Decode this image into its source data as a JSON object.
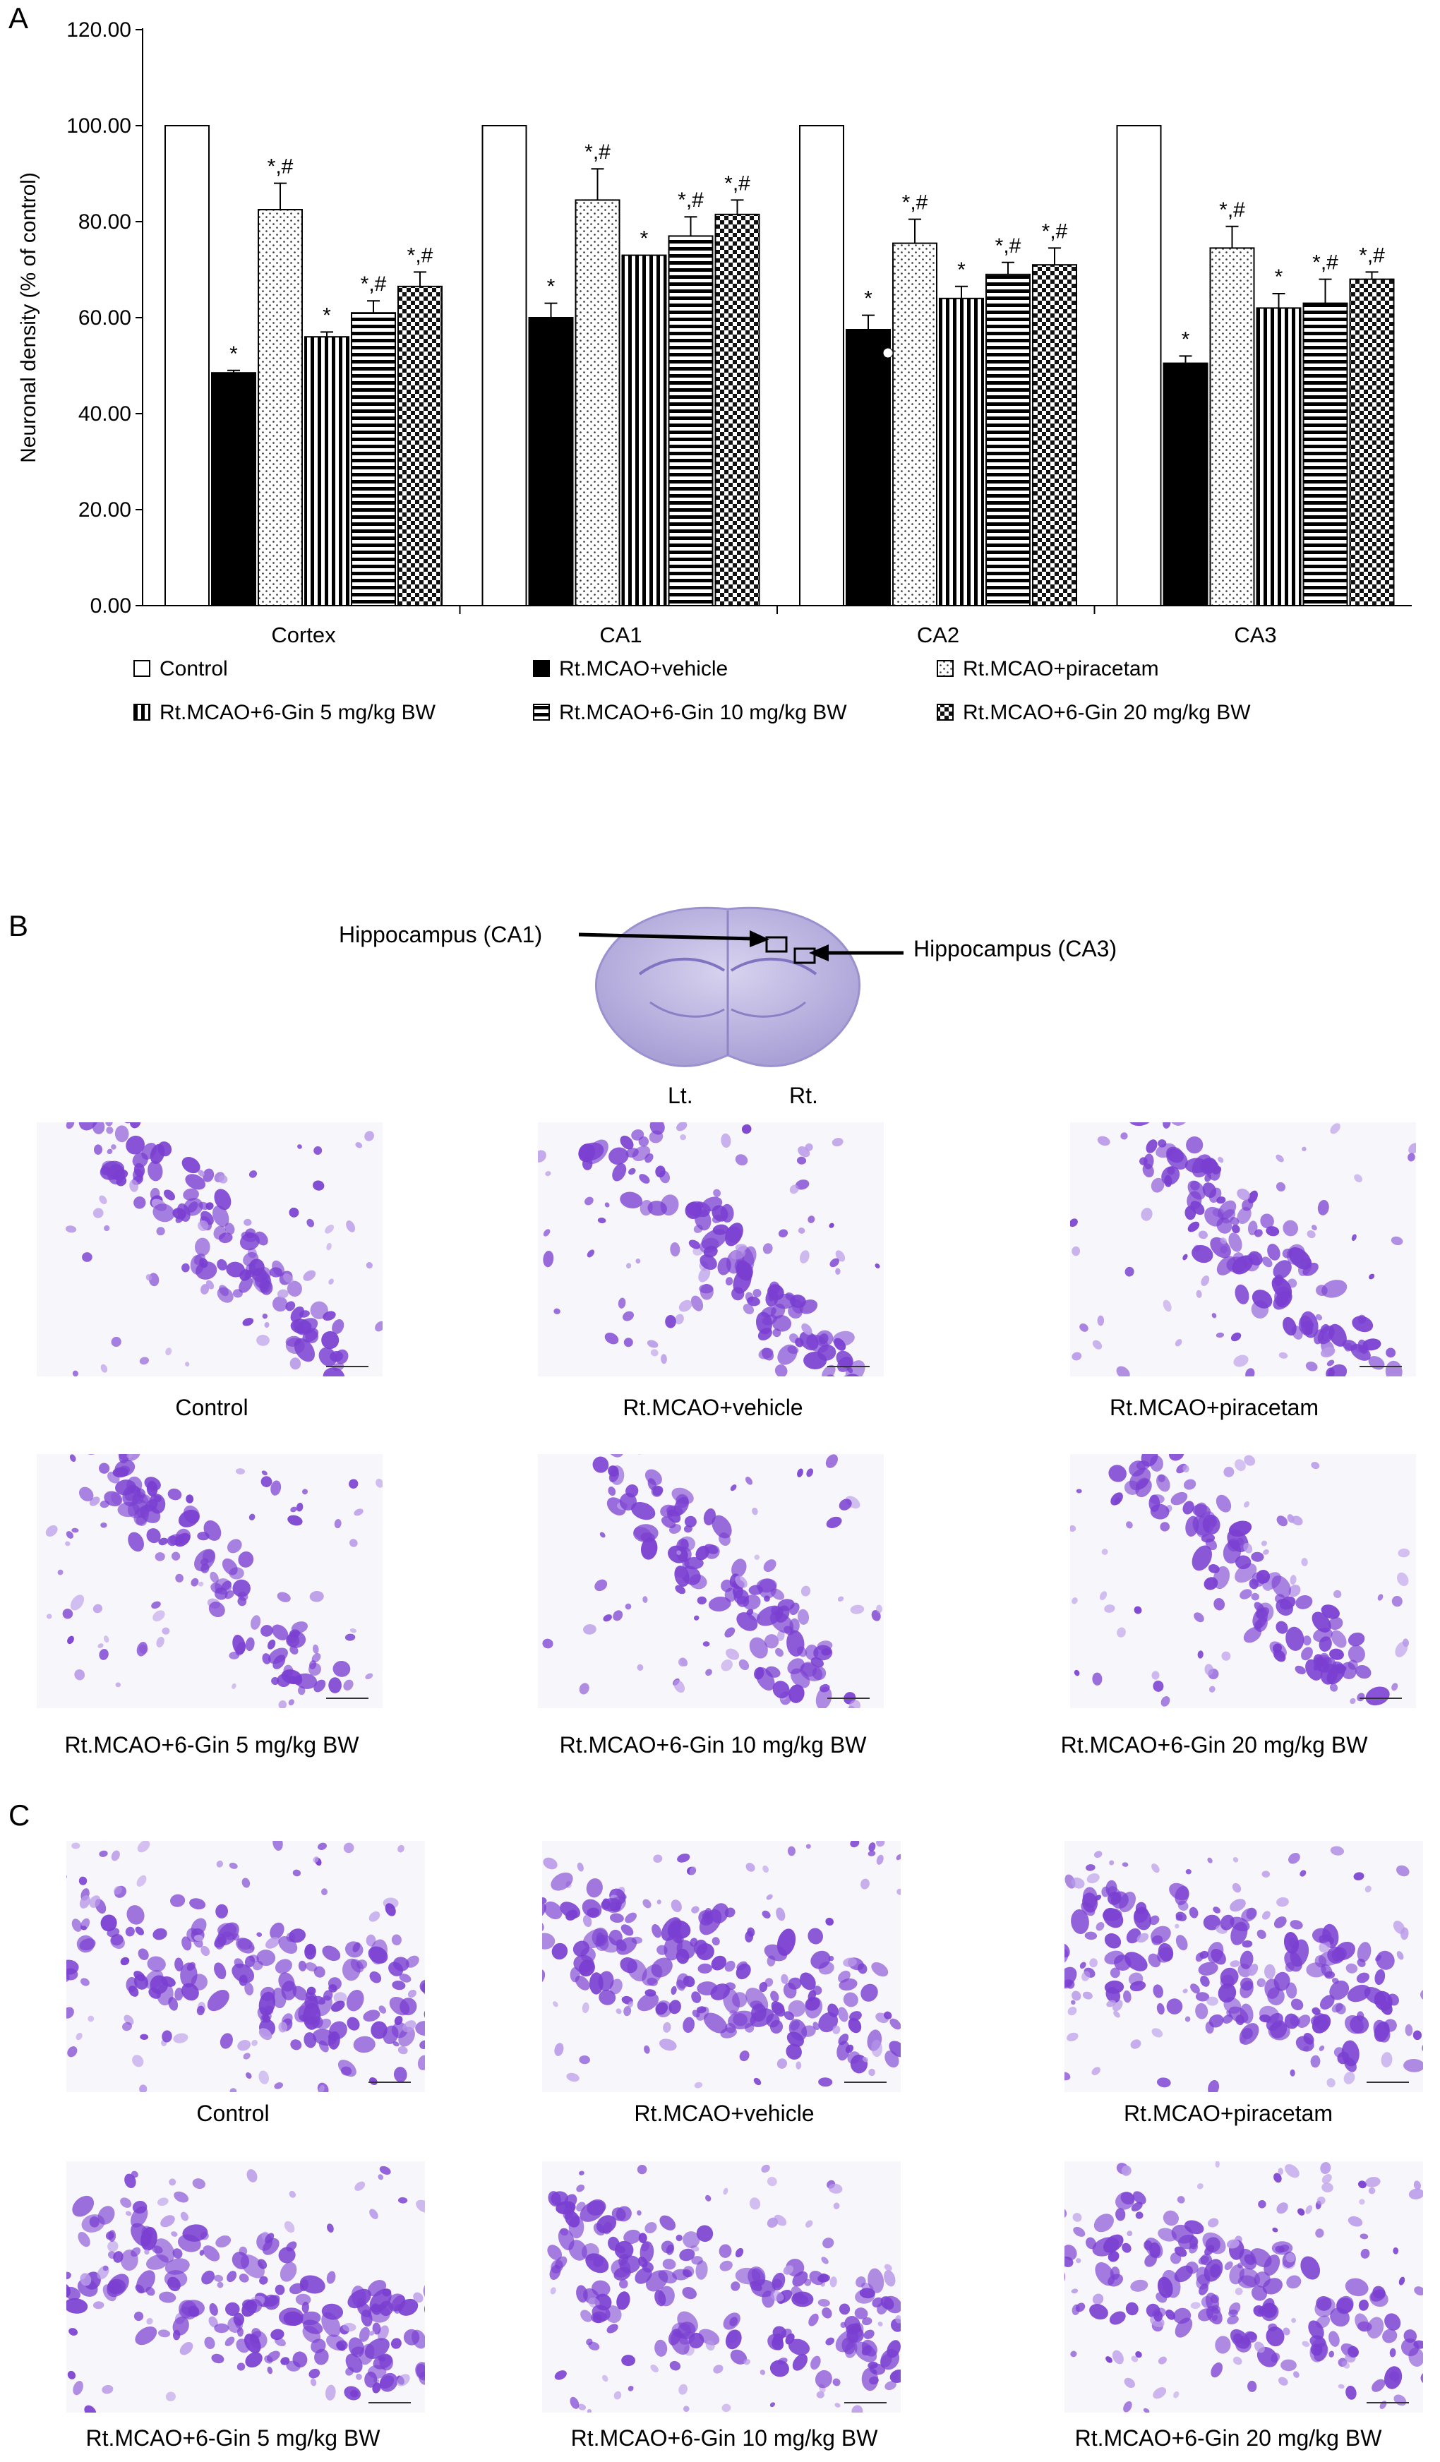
{
  "panels": {
    "a": "A",
    "b": "B",
    "c": "C"
  },
  "chart_data": {
    "type": "bar",
    "ylabel": "Neuronal density (% of control)",
    "xlabel": "",
    "ylim": [
      0,
      120
    ],
    "yticks": [
      "0.00",
      "20.00",
      "40.00",
      "60.00",
      "80.00",
      "100.00",
      "120.00"
    ],
    "categories": [
      "Cortex",
      "CA1",
      "CA2",
      "CA3"
    ],
    "series": [
      {
        "name": "Control",
        "pattern": "white",
        "values": [
          100,
          100,
          100,
          100
        ],
        "errors": [
          0,
          0,
          0,
          0
        ],
        "marks": [
          "",
          "",
          "",
          ""
        ]
      },
      {
        "name": "Rt.MCAO+vehicle",
        "pattern": "black",
        "values": [
          48.5,
          60,
          57.5,
          50.5
        ],
        "errors": [
          0.5,
          3,
          3,
          1.5
        ],
        "marks": [
          "*",
          "*",
          "*",
          "*"
        ]
      },
      {
        "name": "Rt.MCAO+piracetam",
        "pattern": "dots",
        "values": [
          82.5,
          84.5,
          75.5,
          74.5
        ],
        "errors": [
          5.5,
          6.5,
          5,
          4.5
        ],
        "marks": [
          "*,#",
          "*,#",
          "*,#",
          "*,#"
        ]
      },
      {
        "name": "Rt.MCAO+6-Gin 5 mg/kg BW",
        "pattern": "vlines",
        "values": [
          56,
          73,
          64,
          62
        ],
        "errors": [
          1,
          0,
          2.5,
          3
        ],
        "marks": [
          "*",
          "*",
          "*",
          "*"
        ]
      },
      {
        "name": "Rt.MCAO+6-Gin 10 mg/kg BW",
        "pattern": "hlines",
        "values": [
          61,
          77,
          69,
          63
        ],
        "errors": [
          2.5,
          4,
          2.5,
          5
        ],
        "marks": [
          "*,#",
          "*,#",
          "*,#",
          "*,#"
        ]
      },
      {
        "name": "Rt.MCAO+6-Gin 20 mg/kg BW",
        "pattern": "checker",
        "values": [
          66.5,
          81.5,
          71,
          68
        ],
        "errors": [
          3,
          3,
          3.5,
          1.5
        ],
        "marks": [
          "*,#",
          "*,#",
          "*,#",
          "*,#"
        ]
      }
    ],
    "grid": false,
    "legend_position": "bottom"
  },
  "panel_b": {
    "label_ca1": "Hippocampus (CA1)",
    "label_ca3": "Hippocampus (CA3)",
    "label_lt": "Lt.",
    "label_rt": "Rt.",
    "captions": [
      "Control",
      "Rt.MCAO+vehicle",
      "Rt.MCAO+piracetam",
      "Rt.MCAO+6-Gin 5 mg/kg BW",
      "Rt.MCAO+6-Gin 10 mg/kg BW",
      "Rt.MCAO+6-Gin 20 mg/kg BW"
    ]
  },
  "panel_c": {
    "captions": [
      "Control",
      "Rt.MCAO+vehicle",
      "Rt.MCAO+piracetam",
      "Rt.MCAO+6-Gin 5 mg/kg BW",
      "Rt.MCAO+6-Gin 10 mg/kg BW",
      "Rt.MCAO+6-Gin 20 mg/kg BW"
    ]
  },
  "colors": {
    "stain": "#7a3fd1",
    "stain_light": "#b99ae8",
    "brain": "#c9c3e6"
  }
}
